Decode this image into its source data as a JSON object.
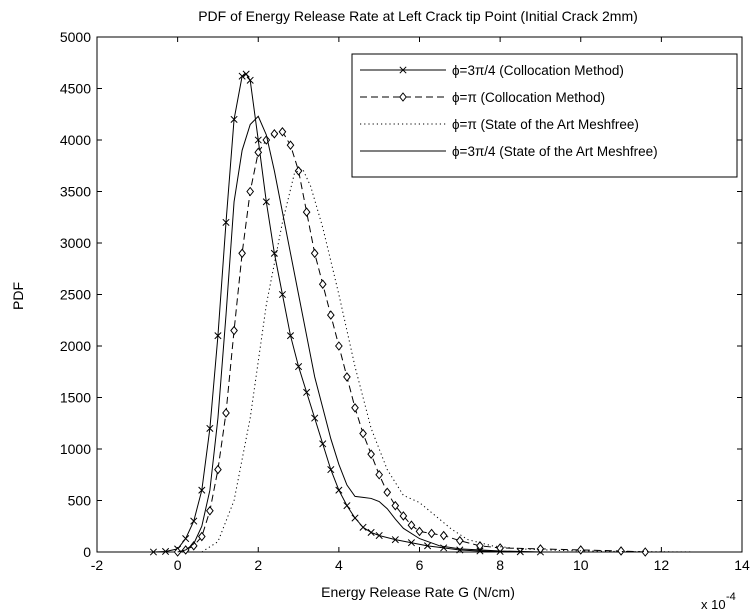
{
  "chart_data": {
    "type": "line",
    "title": "PDF of Energy Release Rate at Left Crack tip Point (Initial Crack 2mm)",
    "xlabel": "Energy Release Rate G (N/cm)",
    "ylabel": "PDF",
    "x_multiplier": "x 10",
    "x_multiplier_exp": "-4",
    "xlim": [
      -2,
      14
    ],
    "ylim": [
      0,
      5000
    ],
    "xticks": [
      -2,
      0,
      2,
      4,
      6,
      8,
      10,
      12,
      14
    ],
    "yticks": [
      0,
      500,
      1000,
      1500,
      2000,
      2500,
      3000,
      3500,
      4000,
      4500,
      5000
    ],
    "grid": false,
    "legend_position": "top-right",
    "series": [
      {
        "name": "ϕ=3π/4 (Collocation Method)",
        "style": "solid",
        "marker": "x",
        "color": "#000000",
        "points": [
          [
            -0.6,
            0
          ],
          [
            -0.3,
            5
          ],
          [
            0,
            30
          ],
          [
            0.2,
            130
          ],
          [
            0.4,
            300
          ],
          [
            0.6,
            600
          ],
          [
            0.8,
            1200
          ],
          [
            1.0,
            2100
          ],
          [
            1.2,
            3200
          ],
          [
            1.4,
            4200
          ],
          [
            1.6,
            4620
          ],
          [
            1.7,
            4640
          ],
          [
            1.8,
            4580
          ],
          [
            2.0,
            4000
          ],
          [
            2.2,
            3400
          ],
          [
            2.4,
            2900
          ],
          [
            2.6,
            2500
          ],
          [
            2.8,
            2100
          ],
          [
            3.0,
            1800
          ],
          [
            3.2,
            1550
          ],
          [
            3.4,
            1300
          ],
          [
            3.6,
            1050
          ],
          [
            3.8,
            800
          ],
          [
            4.0,
            600
          ],
          [
            4.2,
            450
          ],
          [
            4.4,
            330
          ],
          [
            4.6,
            240
          ],
          [
            4.8,
            190
          ],
          [
            5.0,
            160
          ],
          [
            5.4,
            120
          ],
          [
            5.8,
            90
          ],
          [
            6.2,
            60
          ],
          [
            6.6,
            40
          ],
          [
            7.0,
            20
          ],
          [
            7.5,
            10
          ],
          [
            8.0,
            5
          ],
          [
            8.5,
            2
          ],
          [
            9.0,
            0
          ]
        ]
      },
      {
        "name": "ϕ=π (Collocation Method)",
        "style": "dashed",
        "marker": "diamond",
        "color": "#000000",
        "points": [
          [
            0,
            0
          ],
          [
            0.2,
            20
          ],
          [
            0.4,
            60
          ],
          [
            0.6,
            150
          ],
          [
            0.8,
            400
          ],
          [
            1.0,
            800
          ],
          [
            1.2,
            1350
          ],
          [
            1.4,
            2150
          ],
          [
            1.6,
            2900
          ],
          [
            1.8,
            3500
          ],
          [
            2.0,
            3880
          ],
          [
            2.2,
            4000
          ],
          [
            2.4,
            4060
          ],
          [
            2.6,
            4080
          ],
          [
            2.8,
            3950
          ],
          [
            3.0,
            3700
          ],
          [
            3.2,
            3300
          ],
          [
            3.4,
            2900
          ],
          [
            3.6,
            2600
          ],
          [
            3.8,
            2300
          ],
          [
            4.0,
            2000
          ],
          [
            4.2,
            1700
          ],
          [
            4.4,
            1400
          ],
          [
            4.6,
            1150
          ],
          [
            4.8,
            950
          ],
          [
            5.0,
            750
          ],
          [
            5.2,
            580
          ],
          [
            5.4,
            450
          ],
          [
            5.6,
            350
          ],
          [
            5.8,
            260
          ],
          [
            6.0,
            200
          ],
          [
            6.3,
            180
          ],
          [
            6.6,
            160
          ],
          [
            7.0,
            110
          ],
          [
            7.5,
            60
          ],
          [
            8.0,
            40
          ],
          [
            9.0,
            30
          ],
          [
            10.0,
            20
          ],
          [
            11.0,
            10
          ],
          [
            11.6,
            0
          ]
        ]
      },
      {
        "name": "ϕ=π (State of the Art Meshfree)",
        "style": "dotted",
        "marker": "none",
        "color": "#000000",
        "points": [
          [
            0.6,
            0
          ],
          [
            1.0,
            100
          ],
          [
            1.4,
            500
          ],
          [
            1.8,
            1300
          ],
          [
            2.2,
            2400
          ],
          [
            2.6,
            3200
          ],
          [
            2.9,
            3680
          ],
          [
            3.1,
            3720
          ],
          [
            3.3,
            3550
          ],
          [
            3.6,
            3150
          ],
          [
            4.0,
            2500
          ],
          [
            4.4,
            1800
          ],
          [
            4.8,
            1200
          ],
          [
            5.2,
            800
          ],
          [
            5.6,
            550
          ],
          [
            6.0,
            480
          ],
          [
            6.4,
            350
          ],
          [
            6.8,
            220
          ],
          [
            7.2,
            120
          ],
          [
            7.8,
            60
          ],
          [
            8.5,
            30
          ],
          [
            9.5,
            15
          ],
          [
            11,
            5
          ],
          [
            13,
            0
          ]
        ]
      },
      {
        "name": "ϕ=3π/4 (State of the Art Meshfree)",
        "style": "solid",
        "marker": "none",
        "color": "#000000",
        "points": [
          [
            0,
            0
          ],
          [
            0.2,
            20
          ],
          [
            0.4,
            80
          ],
          [
            0.6,
            250
          ],
          [
            0.8,
            600
          ],
          [
            1.0,
            1300
          ],
          [
            1.2,
            2300
          ],
          [
            1.4,
            3400
          ],
          [
            1.6,
            3900
          ],
          [
            1.8,
            4150
          ],
          [
            2.0,
            4230
          ],
          [
            2.2,
            4050
          ],
          [
            2.4,
            3700
          ],
          [
            2.6,
            3300
          ],
          [
            2.8,
            2900
          ],
          [
            3.0,
            2500
          ],
          [
            3.2,
            2100
          ],
          [
            3.4,
            1700
          ],
          [
            3.6,
            1400
          ],
          [
            3.8,
            1100
          ],
          [
            4.0,
            850
          ],
          [
            4.2,
            650
          ],
          [
            4.4,
            540
          ],
          [
            4.6,
            530
          ],
          [
            4.8,
            520
          ],
          [
            5.0,
            490
          ],
          [
            5.2,
            420
          ],
          [
            5.4,
            320
          ],
          [
            5.6,
            230
          ],
          [
            6.0,
            130
          ],
          [
            6.5,
            60
          ],
          [
            7.0,
            30
          ],
          [
            8.0,
            10
          ],
          [
            9.0,
            0
          ]
        ]
      }
    ]
  }
}
